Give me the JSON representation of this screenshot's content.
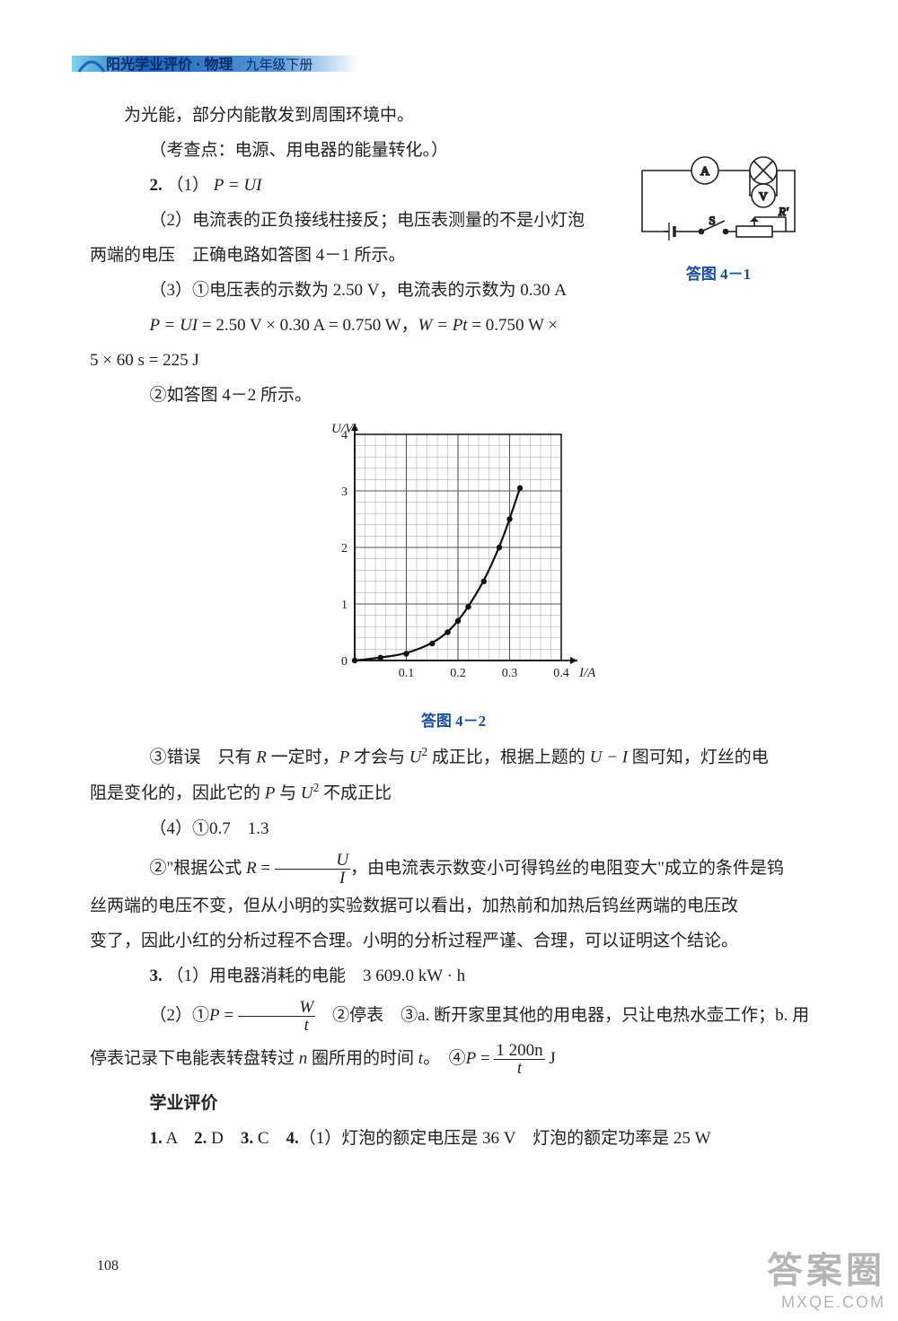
{
  "header": {
    "title_main": "阳光学业评价 · 物理",
    "title_sub": "九年级下册",
    "band_gradient_start": "#7fd3f0",
    "band_gradient_mid": "#1a63b5",
    "band_gradient_end": "#ffffff",
    "arc_color": "#1a63b5",
    "title_main_color": "#0a2a6b",
    "title_sub_color": "#0a2a6b"
  },
  "paragraphs": {
    "p1": "为光能，部分内能散发到周围环境中。",
    "p2": "（考查点：电源、用电器的能量转化。）",
    "p3_a": "2.",
    "p3_b": "（1） ",
    "p3_c": "P = UI",
    "p4": "（2）电流表的正负接线柱接反；电压表测量的不是小灯泡",
    "p5": "两端的电压　正确电路如答图 4－1 所示。",
    "p6": "（3）①电压表的示数为 2.50 V，电流表的示数为 0.30 A",
    "p7_a": "P = UI",
    "p7_b": " = 2.50 V × 0.30 A = 0.750 W，",
    "p7_c": "W = Pt",
    "p7_d": " = 0.750 W ×",
    "p8": "5 × 60 s = 225 J",
    "p9": "②如答图 4－2 所示。",
    "p10_a": "③错误　只有 ",
    "p10_b": "R",
    "p10_c": " 一定时，",
    "p10_d": "P",
    "p10_e": " 才会与 ",
    "p10_f": "U",
    "p10_g": " 成正比，根据上题的 ",
    "p10_h": "U − I",
    "p10_i": " 图可知，灯丝的电",
    "p11_a": "阻是变化的，因此它的 ",
    "p11_b": "P",
    "p11_c": " 与 ",
    "p11_d": "U",
    "p11_e": " 不成正比",
    "p12": "（4）①0.7　1.3",
    "p13_a": "②\"根据公式 ",
    "p13_b": "R",
    "p13_c": " = ",
    "p13_num": "U",
    "p13_den": "I",
    "p13_d": "，由电流表示数变小可得钨丝的电阻变大\"成立的条件是钨",
    "p14": "丝两端的电压不变，但从小明的实验数据可以看出，加热前和加热后钨丝两端的电压改",
    "p15": "变了，因此小红的分析过程不合理。小明的分析过程严谨、合理，可以证明这个结论。",
    "p16_a": "3.",
    "p16_b": "（1）用电器消耗的电能　3 609.0 kW · h",
    "p17_a": "（2）①",
    "p17_b": "P",
    "p17_c": " = ",
    "p17_num": "W",
    "p17_den": "t",
    "p17_d": "　②停表　③a. 断开家里其他的用电器，只让电热水壶工作；b. 用",
    "p18_a": "停表记录下电能表转盘转过 ",
    "p18_b": "n",
    "p18_c": " 圈所用的时间 ",
    "p18_d": "t",
    "p18_e": "。　④",
    "p18_f": "P",
    "p18_g": " = ",
    "p18_num": "1 200n",
    "p18_den": "t",
    "p18_h": " J",
    "section": "学业评价",
    "p19_a": "1.",
    "p19_b": " A　",
    "p19_c": "2.",
    "p19_d": " D　",
    "p19_e": "3.",
    "p19_f": " C　",
    "p19_g": "4.",
    "p19_h": "（1）灯泡的额定电压是 36 V　灯泡的额定功率是 25 W"
  },
  "circuit": {
    "caption": "答图 4－1",
    "labels": {
      "A": "A",
      "V": "V",
      "S": "S",
      "R": "R'"
    },
    "stroke": "#222222",
    "fill": "#ffffff"
  },
  "chart": {
    "caption": "答图 4－2",
    "type": "line",
    "x_label": "I/A",
    "y_label": "U/V",
    "xlim": [
      0,
      0.4
    ],
    "ylim": [
      0,
      4
    ],
    "x_ticks": [
      0,
      0.1,
      0.2,
      0.3,
      0.4
    ],
    "y_ticks": [
      0,
      1,
      2,
      3,
      4
    ],
    "x_tick_labels": [
      "0",
      "0.1",
      "0.2",
      "0.3",
      "0.4"
    ],
    "y_tick_labels": [
      "0",
      "1",
      "2",
      "3",
      "4"
    ],
    "minor_grid_divisions": 5,
    "data_points": [
      [
        0.0,
        0.0
      ],
      [
        0.05,
        0.05
      ],
      [
        0.1,
        0.12
      ],
      [
        0.15,
        0.3
      ],
      [
        0.18,
        0.5
      ],
      [
        0.2,
        0.7
      ],
      [
        0.22,
        0.95
      ],
      [
        0.25,
        1.4
      ],
      [
        0.28,
        2.0
      ],
      [
        0.3,
        2.5
      ],
      [
        0.32,
        3.05
      ]
    ],
    "background_color": "#ffffff",
    "grid_color": "#555555",
    "minor_grid_color": "#888888",
    "major_grid_width": 1.1,
    "minor_grid_width": 0.4,
    "curve_color": "#111111",
    "curve_width": 2.2,
    "point_color": "#111111",
    "point_radius": 3.2,
    "axis_color": "#111111",
    "label_fontsize": 15,
    "tick_fontsize": 14
  },
  "page_number": "108",
  "watermark": {
    "cn": "答案圈",
    "en": "MXQE.COM"
  }
}
